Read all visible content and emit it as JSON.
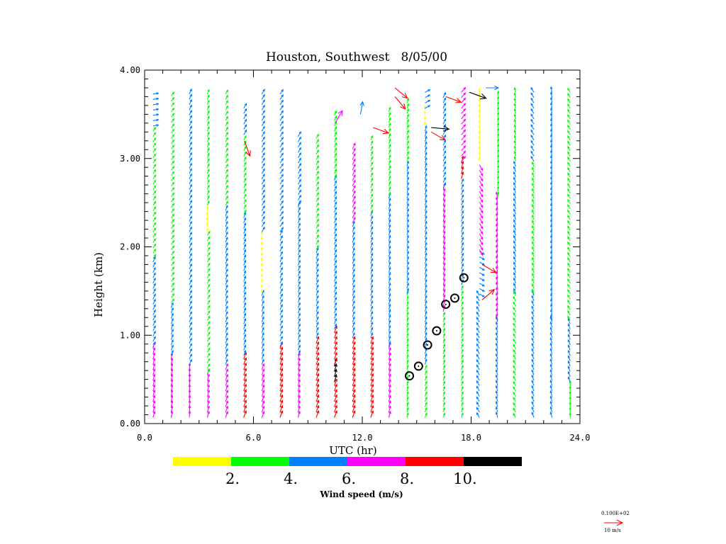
{
  "chart_data": {
    "type": "vector-field",
    "title": "Houston, Southwest   8/05/00",
    "xlabel": "UTC (hr)",
    "ylabel": "Height (km)",
    "xlim": [
      0,
      24
    ],
    "ylim": [
      0,
      4
    ],
    "x_ticks": [
      "0.0",
      "6.0",
      "12.0",
      "18.0",
      "24.0"
    ],
    "y_ticks": [
      "0.00",
      "1.00",
      "2.00",
      "3.00",
      "4.00"
    ],
    "colorbar": {
      "title": "Wind speed (m/s)",
      "labels": [
        "2.",
        "4.",
        "6.",
        "8.",
        "10."
      ],
      "bins": [
        {
          "min": 0,
          "max": 2,
          "color": "#ffff00"
        },
        {
          "min": 2,
          "max": 4,
          "color": "#00ff00"
        },
        {
          "min": 4,
          "max": 6,
          "color": "#0080ff"
        },
        {
          "min": 6,
          "max": 8,
          "color": "#ff00ff"
        },
        {
          "min": 8,
          "max": 10,
          "color": "#ff0000"
        },
        {
          "min": 10,
          "max": 12,
          "color": "#000000"
        }
      ]
    },
    "reference_vector": {
      "label_top": "0.100E+02",
      "label_bottom": "10 m/s",
      "color": "#ff0000"
    },
    "profile_times": [
      0.5,
      1.5,
      2.5,
      3.5,
      4.5,
      5.5,
      6.5,
      7.5,
      8.5,
      9.5,
      10.5,
      11.5,
      12.5,
      13.5,
      14.5,
      15.5,
      16.5,
      17.5,
      18.5,
      19.5,
      20.5,
      21.5,
      22.5,
      23.5
    ],
    "profile_tops_km": [
      3.8,
      3.8,
      3.8,
      3.8,
      3.8,
      3.65,
      3.8,
      3.8,
      3.3,
      3.3,
      3.55,
      3.2,
      3.3,
      3.6,
      3.7,
      3.8,
      3.75,
      3.8,
      3.8,
      3.8,
      3.8,
      3.8,
      3.8,
      3.8
    ],
    "profiles": [
      {
        "t": 0.5,
        "layers": [
          {
            "z0": 0.1,
            "z1": 0.9,
            "speed": 7,
            "dir": 15
          },
          {
            "z0": 0.9,
            "z1": 1.9,
            "speed": 5,
            "dir": 25
          },
          {
            "z0": 1.9,
            "z1": 3.4,
            "speed": 3,
            "dir": 35
          },
          {
            "z0": 3.4,
            "z1": 3.8,
            "speed": 5,
            "dir": 80
          }
        ]
      },
      {
        "t": 1.5,
        "layers": [
          {
            "z0": 0.1,
            "z1": 0.8,
            "speed": 7,
            "dir": 10
          },
          {
            "z0": 0.8,
            "z1": 1.4,
            "speed": 5,
            "dir": 20
          },
          {
            "z0": 1.4,
            "z1": 3.8,
            "speed": 3,
            "dir": 40
          }
        ]
      },
      {
        "t": 2.5,
        "layers": [
          {
            "z0": 0.1,
            "z1": 0.7,
            "speed": 7,
            "dir": 5
          },
          {
            "z0": 0.7,
            "z1": 3.8,
            "speed": 5,
            "dir": 25
          }
        ]
      },
      {
        "t": 3.5,
        "layers": [
          {
            "z0": 0.1,
            "z1": 0.6,
            "speed": 7,
            "dir": 15
          },
          {
            "z0": 0.6,
            "z1": 2.2,
            "speed": 3,
            "dir": 30
          },
          {
            "z0": 2.2,
            "z1": 2.5,
            "speed": 1,
            "dir": 0
          },
          {
            "z0": 2.5,
            "z1": 3.8,
            "speed": 3,
            "dir": 20
          }
        ]
      },
      {
        "t": 4.5,
        "layers": [
          {
            "z0": 0.1,
            "z1": 0.7,
            "speed": 7,
            "dir": 20
          },
          {
            "z0": 0.7,
            "z1": 2.5,
            "speed": 5,
            "dir": 20
          },
          {
            "z0": 2.5,
            "z1": 3.8,
            "speed": 3,
            "dir": 30
          }
        ]
      },
      {
        "t": 5.5,
        "layers": [
          {
            "z0": 0.1,
            "z1": 0.8,
            "speed": 9,
            "dir": 20
          },
          {
            "z0": 0.8,
            "z1": 2.4,
            "speed": 5,
            "dir": 20
          },
          {
            "z0": 2.4,
            "z1": 3.3,
            "speed": 3,
            "dir": 30
          },
          {
            "z0": 3.3,
            "z1": 3.65,
            "speed": 5,
            "dir": 30
          }
        ]
      },
      {
        "t": 6.5,
        "layers": [
          {
            "z0": 0.1,
            "z1": 0.7,
            "speed": 7,
            "dir": 20
          },
          {
            "z0": 0.7,
            "z1": 1.5,
            "speed": 5,
            "dir": 20
          },
          {
            "z0": 1.5,
            "z1": 2.2,
            "speed": 1,
            "dir": 0
          },
          {
            "z0": 2.2,
            "z1": 3.8,
            "speed": 5,
            "dir": 30
          }
        ]
      },
      {
        "t": 7.5,
        "layers": [
          {
            "z0": 0.1,
            "z1": 0.9,
            "speed": 9,
            "dir": 20
          },
          {
            "z0": 0.9,
            "z1": 2.2,
            "speed": 5,
            "dir": 25
          },
          {
            "z0": 2.2,
            "z1": 3.8,
            "speed": 5,
            "dir": 35
          }
        ]
      },
      {
        "t": 8.5,
        "layers": [
          {
            "z0": 0.1,
            "z1": 0.8,
            "speed": 7,
            "dir": 15
          },
          {
            "z0": 0.8,
            "z1": 2.5,
            "speed": 5,
            "dir": 20
          },
          {
            "z0": 2.5,
            "z1": 3.3,
            "speed": 5,
            "dir": 30
          }
        ]
      },
      {
        "t": 9.5,
        "layers": [
          {
            "z0": 0.1,
            "z1": 1.0,
            "speed": 9,
            "dir": 20
          },
          {
            "z0": 1.0,
            "z1": 2.0,
            "speed": 5,
            "dir": 20
          },
          {
            "z0": 2.0,
            "z1": 3.3,
            "speed": 3,
            "dir": 30
          }
        ]
      },
      {
        "t": 10.5,
        "layers": [
          {
            "z0": 0.1,
            "z1": 0.5,
            "speed": 9,
            "dir": 20
          },
          {
            "z0": 0.5,
            "z1": 0.7,
            "speed": 11,
            "dir": 15
          },
          {
            "z0": 0.7,
            "z1": 1.1,
            "speed": 9,
            "dir": 20
          },
          {
            "z0": 1.1,
            "z1": 2.8,
            "speed": 5,
            "dir": 20
          },
          {
            "z0": 2.8,
            "z1": 3.55,
            "speed": 3,
            "dir": 25
          }
        ]
      },
      {
        "t": 11.5,
        "layers": [
          {
            "z0": 0.1,
            "z1": 1.0,
            "speed": 9,
            "dir": 20
          },
          {
            "z0": 1.0,
            "z1": 2.3,
            "speed": 5,
            "dir": 20
          },
          {
            "z0": 2.3,
            "z1": 3.2,
            "speed": 7,
            "dir": 25
          }
        ]
      },
      {
        "t": 12.5,
        "layers": [
          {
            "z0": 0.1,
            "z1": 1.0,
            "speed": 9,
            "dir": 20
          },
          {
            "z0": 1.0,
            "z1": 2.4,
            "speed": 5,
            "dir": 20
          },
          {
            "z0": 2.4,
            "z1": 3.3,
            "speed": 3,
            "dir": 25
          }
        ]
      },
      {
        "t": 13.5,
        "layers": [
          {
            "z0": 0.1,
            "z1": 0.9,
            "speed": 7,
            "dir": 15
          },
          {
            "z0": 0.9,
            "z1": 2.6,
            "speed": 5,
            "dir": 15
          },
          {
            "z0": 2.6,
            "z1": 3.6,
            "speed": 3,
            "dir": 20
          }
        ]
      },
      {
        "t": 14.5,
        "layers": [
          {
            "z0": 0.1,
            "z1": 1.5,
            "speed": 3,
            "dir": 15
          },
          {
            "z0": 1.5,
            "z1": 3.0,
            "speed": 5,
            "dir": 15
          },
          {
            "z0": 3.0,
            "z1": 3.7,
            "speed": 3,
            "dir": 20
          }
        ]
      },
      {
        "t": 15.5,
        "layers": [
          {
            "z0": 0.1,
            "z1": 0.7,
            "speed": 3,
            "dir": 20
          },
          {
            "z0": 0.7,
            "z1": 3.4,
            "speed": 5,
            "dir": 15
          },
          {
            "z0": 3.4,
            "z1": 3.6,
            "speed": 1,
            "dir": 0
          },
          {
            "z0": 3.6,
            "z1": 3.8,
            "speed": 5,
            "dir": 60
          }
        ]
      },
      {
        "t": 16.5,
        "layers": [
          {
            "z0": 0.1,
            "z1": 1.3,
            "speed": 3,
            "dir": 20
          },
          {
            "z0": 1.3,
            "z1": 2.7,
            "speed": 7,
            "dir": 15
          },
          {
            "z0": 2.7,
            "z1": 3.75,
            "speed": 5,
            "dir": 25
          }
        ]
      },
      {
        "t": 17.5,
        "layers": [
          {
            "z0": 0.1,
            "z1": 1.6,
            "speed": 3,
            "dir": 20
          },
          {
            "z0": 1.6,
            "z1": 2.8,
            "speed": 5,
            "dir": 20
          },
          {
            "z0": 2.8,
            "z1": 3.0,
            "speed": 9,
            "dir": 15
          },
          {
            "z0": 3.0,
            "z1": 3.8,
            "speed": 7,
            "dir": 40
          }
        ]
      },
      {
        "t": 18.5,
        "layers": [
          {
            "z0": 0.1,
            "z1": 1.5,
            "speed": 5,
            "dir": 330
          },
          {
            "z0": 1.5,
            "z1": 2.0,
            "speed": 5,
            "dir": 120
          },
          {
            "z0": 2.0,
            "z1": 3.0,
            "speed": 7,
            "dir": 150
          },
          {
            "z0": 3.0,
            "z1": 3.8,
            "speed": 1,
            "dir": 0
          }
        ]
      },
      {
        "t": 19.5,
        "layers": [
          {
            "z0": 0.1,
            "z1": 1.2,
            "speed": 5,
            "dir": 345
          },
          {
            "z0": 1.2,
            "z1": 2.6,
            "speed": 7,
            "dir": 350
          },
          {
            "z0": 2.6,
            "z1": 3.8,
            "speed": 3,
            "dir": 10
          }
        ]
      },
      {
        "t": 20.5,
        "layers": [
          {
            "z0": 0.1,
            "z1": 1.5,
            "speed": 3,
            "dir": 330
          },
          {
            "z0": 1.5,
            "z1": 3.0,
            "speed": 5,
            "dir": 340
          },
          {
            "z0": 3.0,
            "z1": 3.8,
            "speed": 3,
            "dir": 345
          }
        ]
      },
      {
        "t": 21.5,
        "layers": [
          {
            "z0": 0.1,
            "z1": 1.5,
            "speed": 5,
            "dir": 340
          },
          {
            "z0": 1.5,
            "z1": 3.0,
            "speed": 3,
            "dir": 340
          },
          {
            "z0": 3.0,
            "z1": 3.8,
            "speed": 5,
            "dir": 330
          }
        ]
      },
      {
        "t": 22.5,
        "layers": [
          {
            "z0": 0.1,
            "z1": 1.2,
            "speed": 5,
            "dir": 345
          },
          {
            "z0": 1.2,
            "z1": 3.8,
            "speed": 5,
            "dir": 350
          }
        ]
      },
      {
        "t": 23.5,
        "layers": [
          {
            "z0": 0.1,
            "z1": 0.5,
            "speed": 3,
            "dir": 0
          },
          {
            "z0": 0.5,
            "z1": 1.2,
            "speed": 5,
            "dir": 340
          },
          {
            "z0": 1.2,
            "z1": 3.8,
            "speed": 3,
            "dir": 330
          }
        ]
      }
    ],
    "extra_vectors": [
      {
        "t": 5.5,
        "z": 3.2,
        "speed": 9,
        "dir": 160
      },
      {
        "t": 10.5,
        "z": 3.4,
        "speed": 7,
        "dir": 30
      },
      {
        "t": 11.9,
        "z": 3.5,
        "speed": 5,
        "dir": 10
      },
      {
        "t": 12.6,
        "z": 3.35,
        "speed": 9,
        "dir": 110
      },
      {
        "t": 13.8,
        "z": 3.7,
        "speed": 9,
        "dir": 140
      },
      {
        "t": 13.8,
        "z": 3.8,
        "speed": 9,
        "dir": 130
      },
      {
        "t": 15.8,
        "z": 3.35,
        "speed": 11,
        "dir": 95
      },
      {
        "t": 15.8,
        "z": 3.3,
        "speed": 9,
        "dir": 120
      },
      {
        "t": 16.6,
        "z": 3.7,
        "speed": 9,
        "dir": 110
      },
      {
        "t": 17.9,
        "z": 3.75,
        "speed": 11,
        "dir": 110
      },
      {
        "t": 18.8,
        "z": 3.8,
        "speed": 5,
        "dir": 90
      },
      {
        "t": 18.6,
        "z": 1.4,
        "speed": 9,
        "dir": 50
      },
      {
        "t": 18.6,
        "z": 1.8,
        "speed": 9,
        "dir": 120
      }
    ],
    "markers": [
      {
        "t": 14.6,
        "z": 0.54
      },
      {
        "t": 15.1,
        "z": 0.65
      },
      {
        "t": 15.6,
        "z": 0.89
      },
      {
        "t": 16.1,
        "z": 1.05
      },
      {
        "t": 16.6,
        "z": 1.35
      },
      {
        "t": 17.1,
        "z": 1.42
      },
      {
        "t": 17.6,
        "z": 1.65
      }
    ]
  }
}
